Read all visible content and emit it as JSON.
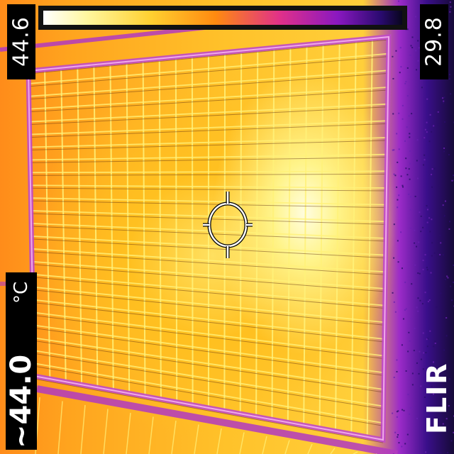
{
  "scale": {
    "max": "44.6",
    "min": "29.8"
  },
  "spot": {
    "value": "~44.0",
    "unit": "°C"
  },
  "brand": {
    "logo_text": "FLIR"
  },
  "icons": {
    "palette": "iron-palette-bar",
    "crosshair": "spot-meter-crosshair-icon"
  },
  "colors": {
    "hot": "#fffde0",
    "warm": "#ffc22a",
    "mid": "#ff8a10",
    "cool": "#8a18c0",
    "cold": "#160a38"
  }
}
